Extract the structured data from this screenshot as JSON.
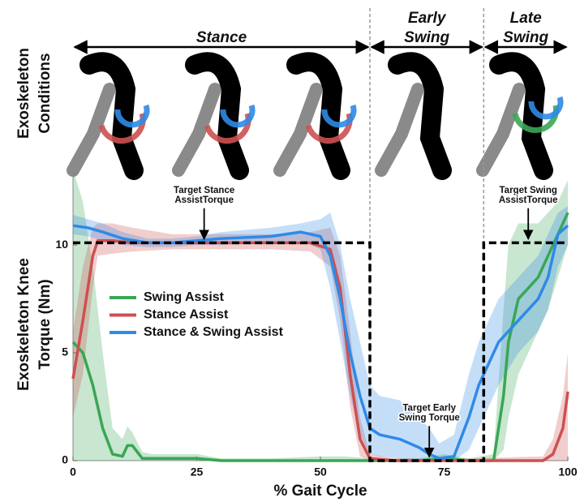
{
  "chart_data": {
    "type": "line",
    "conditions_label": [
      "Exoskeleton",
      "Conditions"
    ],
    "y_label": [
      "Exoskeleton Knee",
      "Torque (Nm)"
    ],
    "x_label": "% Gait Cycle",
    "xlim": [
      0,
      100
    ],
    "xticks": [
      0,
      25,
      50,
      75,
      100
    ],
    "ylim": [
      0,
      13.2
    ],
    "yticks": [
      0,
      5,
      10
    ],
    "legend": "left",
    "phases": [
      {
        "lines": [
          "Stance"
        ],
        "range": [
          0,
          60
        ]
      },
      {
        "lines": [
          "Early",
          "Swing"
        ],
        "range": [
          60,
          83
        ]
      },
      {
        "lines": [
          "Late",
          "Swing"
        ],
        "range": [
          83,
          100
        ]
      }
    ],
    "target": {
      "color": "#000000",
      "x": [
        0,
        60,
        60,
        83,
        83,
        100
      ],
      "values": [
        10.1,
        10.1,
        0,
        0,
        10.1,
        10.1
      ]
    },
    "annotations": [
      {
        "lines": [
          "Target Stance",
          "AssistTorque"
        ],
        "x": 26.5,
        "y": 10.2
      },
      {
        "lines": [
          "Target Early",
          "Swing Torque"
        ],
        "x": 72,
        "y": 0.1
      },
      {
        "lines": [
          "Target Swing",
          "AssistTorque"
        ],
        "x": 92,
        "y": 10.2
      }
    ],
    "series": [
      {
        "name": "Swing Assist",
        "color": "#3aa655",
        "x": [
          0,
          2,
          4,
          6,
          8,
          10,
          11,
          12,
          14,
          16,
          20,
          25,
          30,
          40,
          50,
          55,
          60,
          70,
          75,
          80,
          85,
          87,
          88,
          90,
          92,
          94,
          96,
          98,
          100
        ],
        "values": [
          5.5,
          5.0,
          3.5,
          1.5,
          0.3,
          0.2,
          0.7,
          0.7,
          0.1,
          0.1,
          0.1,
          0.1,
          0,
          0,
          0,
          0,
          0,
          0,
          0.1,
          0,
          0,
          3,
          5.5,
          7.5,
          8,
          8.5,
          9.5,
          10.5,
          11.5
        ],
        "lower": [
          0,
          0,
          0,
          0,
          0,
          0,
          0,
          0,
          0,
          0,
          0,
          0,
          0,
          0,
          0,
          0,
          0,
          0,
          0,
          0,
          0,
          0.5,
          2,
          4,
          5,
          6,
          7,
          8.5,
          10
        ],
        "upper": [
          13.5,
          12,
          9,
          5,
          1.5,
          1.0,
          1.6,
          1.3,
          0.4,
          0.3,
          0.3,
          0.3,
          0.1,
          0.1,
          0.2,
          0.2,
          0.1,
          0.1,
          0.3,
          0.1,
          0.3,
          7,
          10,
          11,
          11,
          11,
          11.5,
          12,
          13
        ]
      },
      {
        "name": "Stance Assist",
        "color": "#cd5050",
        "x": [
          0,
          2,
          4,
          5,
          8,
          12,
          20,
          30,
          40,
          48,
          52,
          54,
          56,
          58,
          60,
          65,
          80,
          95,
          97,
          99,
          100
        ],
        "values": [
          3.8,
          6.5,
          9.5,
          10.2,
          10.2,
          10.1,
          10.1,
          10.1,
          10.1,
          10.1,
          9.8,
          8,
          4,
          1,
          0.1,
          0,
          0,
          0,
          0.3,
          1.5,
          3.2
        ],
        "lower": [
          2,
          4,
          8,
          9.5,
          9.6,
          9.7,
          9.8,
          9.8,
          9.8,
          9.7,
          9,
          6.5,
          2.5,
          0.2,
          0,
          0,
          0,
          0,
          0,
          0,
          0
        ],
        "upper": [
          6,
          9,
          10.8,
          11,
          11,
          10.8,
          10.5,
          10.5,
          10.5,
          10.6,
          10.8,
          9.5,
          6,
          2,
          0.3,
          0.1,
          0.1,
          0.2,
          1,
          3,
          5
        ]
      },
      {
        "name": "Stance & Swing Assist",
        "color": "#2f8ae6",
        "x": [
          0,
          3,
          6,
          10,
          15,
          20,
          25,
          30,
          40,
          46,
          50,
          52,
          54,
          56,
          58,
          60,
          62,
          66,
          70,
          72,
          74,
          77,
          80,
          82,
          86,
          90,
          94,
          96,
          98,
          100
        ],
        "values": [
          10.9,
          10.8,
          10.6,
          10.3,
          10.1,
          10.1,
          10.2,
          10.3,
          10.4,
          10.6,
          10.4,
          9.5,
          7.5,
          5,
          3,
          1.5,
          1.2,
          1.0,
          0.6,
          0.3,
          0.1,
          0.2,
          2,
          3.5,
          5.5,
          6.5,
          7.5,
          8.5,
          10.5,
          10.9
        ],
        "lower": [
          10.5,
          10.4,
          10.2,
          10,
          9.9,
          9.9,
          10,
          10,
          10.1,
          10.2,
          9.8,
          8,
          5.5,
          3,
          1.2,
          0.3,
          0.2,
          0.1,
          0,
          0,
          0,
          0,
          0.5,
          1.5,
          3.5,
          5,
          6,
          7,
          9,
          10
        ],
        "upper": [
          11.4,
          11.2,
          11,
          10.6,
          10.3,
          10.3,
          10.4,
          10.6,
          10.8,
          11,
          11.2,
          11.5,
          10,
          7.5,
          5.5,
          3.5,
          3,
          2.8,
          2,
          1.5,
          0.8,
          1.2,
          4,
          5.5,
          7.5,
          8.5,
          9.5,
          10.5,
          11.5,
          11.8
        ]
      }
    ]
  }
}
